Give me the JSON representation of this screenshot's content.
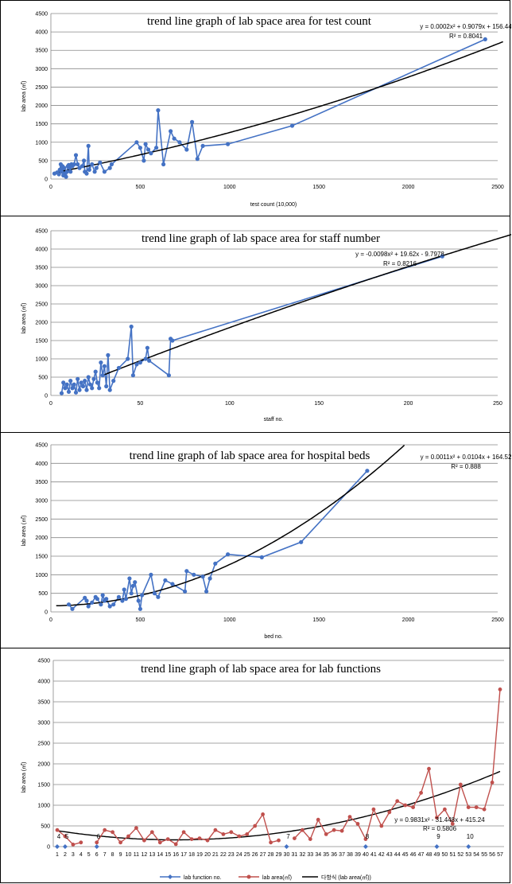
{
  "chart_data": [
    {
      "type": "scatter",
      "title": "trend line graph of lab space area for test count",
      "xlabel": "test count  (10,000)",
      "ylabel": "lab area (㎡)",
      "xlim": [
        0,
        2500
      ],
      "ylim": [
        0,
        4500
      ],
      "xticks": [
        "0",
        "500",
        "1000",
        "1500",
        "2000",
        "2500"
      ],
      "yticks": [
        "0",
        "500",
        "1000",
        "1500",
        "2000",
        "2500",
        "3000",
        "3500",
        "4000",
        "4500"
      ],
      "grid": true,
      "color": "#4472C4",
      "equation": "y = 0.0002x² + 0.9079x + 156.44",
      "r2": "R² = 0.8041",
      "trend": {
        "kind": "poly",
        "c2": 0.0002,
        "c1": 0.9079,
        "c0": 156.44
      },
      "points": [
        [
          20,
          150
        ],
        [
          35,
          180
        ],
        [
          45,
          130
        ],
        [
          50,
          250
        ],
        [
          55,
          400
        ],
        [
          60,
          200
        ],
        [
          65,
          350
        ],
        [
          70,
          100
        ],
        [
          75,
          300
        ],
        [
          80,
          150
        ],
        [
          85,
          60
        ],
        [
          90,
          200
        ],
        [
          95,
          350
        ],
        [
          100,
          380
        ],
        [
          105,
          300
        ],
        [
          110,
          200
        ],
        [
          115,
          400
        ],
        [
          120,
          350
        ],
        [
          130,
          400
        ],
        [
          140,
          650
        ],
        [
          150,
          400
        ],
        [
          160,
          300
        ],
        [
          175,
          350
        ],
        [
          185,
          500
        ],
        [
          190,
          200
        ],
        [
          200,
          150
        ],
        [
          210,
          900
        ],
        [
          215,
          250
        ],
        [
          230,
          400
        ],
        [
          245,
          200
        ],
        [
          255,
          300
        ],
        [
          275,
          450
        ],
        [
          300,
          200
        ],
        [
          330,
          300
        ],
        [
          340,
          400
        ],
        [
          480,
          1000
        ],
        [
          500,
          850
        ],
        [
          520,
          500
        ],
        [
          530,
          950
        ],
        [
          545,
          800
        ],
        [
          560,
          700
        ],
        [
          590,
          850
        ],
        [
          600,
          1870
        ],
        [
          630,
          400
        ],
        [
          670,
          1300
        ],
        [
          690,
          1100
        ],
        [
          720,
          1000
        ],
        [
          760,
          800
        ],
        [
          790,
          1550
        ],
        [
          820,
          550
        ],
        [
          850,
          900
        ],
        [
          990,
          950
        ],
        [
          1350,
          1450
        ],
        [
          2430,
          3800
        ]
      ]
    },
    {
      "type": "scatter",
      "title": "trend line graph of lab space area for staff number",
      "xlabel": "staff no.",
      "ylabel": "lab area (㎡)",
      "xlim": [
        0,
        250
      ],
      "ylim": [
        0,
        4500
      ],
      "xticks": [
        "0",
        "50",
        "100",
        "150",
        "200",
        "250"
      ],
      "yticks": [
        "0",
        "500",
        "1000",
        "1500",
        "2000",
        "2500",
        "3000",
        "3500",
        "4000",
        "4500"
      ],
      "grid": true,
      "color": "#4472C4",
      "equation": "y = -0.0098x² + 19.62x - 9.7978",
      "r2": "R² = 0.8216",
      "trend": {
        "kind": "poly",
        "c2": -0.0098,
        "c1": 19.62,
        "c0": -9.7978
      },
      "points": [
        [
          6,
          60
        ],
        [
          7,
          350
        ],
        [
          8,
          200
        ],
        [
          9,
          300
        ],
        [
          10,
          100
        ],
        [
          11,
          400
        ],
        [
          12,
          200
        ],
        [
          13,
          300
        ],
        [
          14,
          80
        ],
        [
          15,
          450
        ],
        [
          16,
          150
        ],
        [
          17,
          350
        ],
        [
          18,
          250
        ],
        [
          19,
          400
        ],
        [
          20,
          150
        ],
        [
          21,
          500
        ],
        [
          22,
          300
        ],
        [
          23,
          200
        ],
        [
          24,
          450
        ],
        [
          25,
          650
        ],
        [
          26,
          350
        ],
        [
          27,
          200
        ],
        [
          28,
          900
        ],
        [
          29,
          550
        ],
        [
          30,
          800
        ],
        [
          31,
          250
        ],
        [
          32,
          1100
        ],
        [
          33,
          150
        ],
        [
          35,
          400
        ],
        [
          38,
          750
        ],
        [
          43,
          1000
        ],
        [
          45,
          1880
        ],
        [
          46,
          550
        ],
        [
          48,
          850
        ],
        [
          50,
          900
        ],
        [
          53,
          1000
        ],
        [
          54,
          1300
        ],
        [
          55,
          950
        ],
        [
          66,
          550
        ],
        [
          67,
          1550
        ],
        [
          68,
          1500
        ],
        [
          219,
          3800
        ]
      ]
    },
    {
      "type": "scatter",
      "title": "trend line graph of lab space area for hospital beds",
      "xlabel": "bed no.",
      "ylabel": "lab area (㎡)",
      "xlim": [
        0,
        2500
      ],
      "ylim": [
        0,
        4500
      ],
      "xticks": [
        "0",
        "500",
        "1000",
        "1500",
        "2000",
        "2500"
      ],
      "yticks": [
        "0",
        "500",
        "1000",
        "1500",
        "2000",
        "2500",
        "3000",
        "3500",
        "4000",
        "4500"
      ],
      "grid": true,
      "color": "#4472C4",
      "equation": "y = 0.0011x² + 0.0104x + 164.52",
      "r2": "R² = 0.888",
      "trend": {
        "kind": "poly",
        "c2": 0.0011,
        "c1": 0.0104,
        "c0": 164.52
      },
      "points": [
        [
          100,
          200
        ],
        [
          120,
          80
        ],
        [
          190,
          380
        ],
        [
          200,
          300
        ],
        [
          210,
          150
        ],
        [
          230,
          250
        ],
        [
          250,
          400
        ],
        [
          260,
          350
        ],
        [
          280,
          200
        ],
        [
          290,
          450
        ],
        [
          300,
          300
        ],
        [
          310,
          350
        ],
        [
          330,
          150
        ],
        [
          350,
          200
        ],
        [
          380,
          400
        ],
        [
          400,
          300
        ],
        [
          410,
          600
        ],
        [
          420,
          350
        ],
        [
          440,
          900
        ],
        [
          450,
          500
        ],
        [
          460,
          700
        ],
        [
          470,
          800
        ],
        [
          490,
          300
        ],
        [
          500,
          80
        ],
        [
          510,
          450
        ],
        [
          560,
          1000
        ],
        [
          580,
          500
        ],
        [
          600,
          400
        ],
        [
          640,
          850
        ],
        [
          680,
          750
        ],
        [
          750,
          550
        ],
        [
          760,
          1100
        ],
        [
          800,
          1000
        ],
        [
          850,
          950
        ],
        [
          870,
          550
        ],
        [
          890,
          900
        ],
        [
          920,
          1300
        ],
        [
          990,
          1550
        ],
        [
          1180,
          1470
        ],
        [
          1400,
          1880
        ],
        [
          1770,
          3800
        ]
      ]
    },
    {
      "type": "line",
      "title": "trend line graph of lab space area for lab functions",
      "ylabel": "lab area (㎡)",
      "xlabel": "",
      "ylim": [
        0,
        4500
      ],
      "yticks": [
        "0",
        "500",
        "1000",
        "1500",
        "2000",
        "2500",
        "3000",
        "3500",
        "4000",
        "4500"
      ],
      "categories": [
        "1",
        "2",
        "3",
        "4",
        "5",
        "6",
        "7",
        "8",
        "9",
        "10",
        "11",
        "12",
        "13",
        "14",
        "15",
        "16",
        "17",
        "18",
        "19",
        "20",
        "21",
        "22",
        "23",
        "24",
        "25",
        "26",
        "27",
        "28",
        "29",
        "30",
        "31",
        "32",
        "33",
        "34",
        "35",
        "36",
        "37",
        "38",
        "39",
        "40",
        "41",
        "42",
        "43",
        "44",
        "45",
        "46",
        "47",
        "48",
        "49",
        "50",
        "51",
        "52",
        "53",
        "54",
        "55",
        "56",
        "57"
      ],
      "grid": true,
      "equation": "y = 0.9831x² - 31.448x + 415.24",
      "r2": "R² = 0.5806",
      "trend": {
        "kind": "poly",
        "c2": 0.9831,
        "c1": -31.448,
        "c0": 415.24
      },
      "series": [
        {
          "name": "lab function no.",
          "color": "#4472C4",
          "points": [
            [
              1,
              0
            ],
            [
              2,
              0
            ],
            [
              6,
              0
            ],
            [
              30,
              0
            ],
            [
              40,
              0
            ],
            [
              49,
              0
            ],
            [
              53,
              0
            ]
          ],
          "labels": [
            "4",
            "5",
            "6",
            "7",
            "8",
            "9",
            "10"
          ]
        },
        {
          "name": "lab area(㎡)",
          "color": "#C0504D",
          "values": [
            400,
            250,
            50,
            100,
            null,
            100,
            400,
            350,
            100,
            250,
            450,
            150,
            350,
            100,
            180,
            60,
            350,
            180,
            200,
            150,
            400,
            300,
            350,
            250,
            300,
            500,
            780,
            100,
            150,
            null,
            200,
            400,
            180,
            650,
            300,
            400,
            380,
            720,
            550,
            180,
            900,
            500,
            830,
            1100,
            1000,
            950,
            1300,
            1880,
            700,
            900,
            550,
            1500,
            950,
            950,
            900,
            1550,
            3800
          ]
        },
        {
          "name": "다항식 (lab area(㎡))",
          "color": "#000000"
        }
      ]
    }
  ]
}
